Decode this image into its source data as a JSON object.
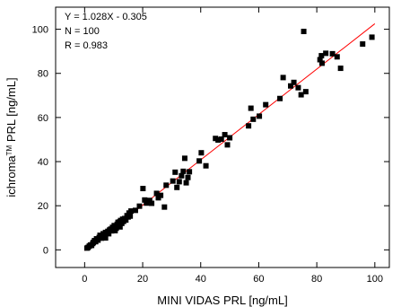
{
  "chart_data": {
    "type": "scatter",
    "xlabel": "MINI VIDAS PRL [ng/mL]",
    "ylabel": {
      "prefix": "ichroma",
      "superscript": "TM",
      "suffix": " PRL [ng/mL]"
    },
    "xlim": [
      -10,
      105
    ],
    "ylim": [
      -8,
      110
    ],
    "xticks": [
      0,
      20,
      40,
      60,
      80,
      100
    ],
    "yticks": [
      0,
      20,
      40,
      60,
      80,
      100
    ],
    "annotations": [
      "Y = 1.028X - 0.305",
      "N = 100",
      "R = 0.983"
    ],
    "fit_line": {
      "slope": 1.028,
      "intercept": -0.305,
      "x_range": [
        0,
        100
      ],
      "color": "#ff0000"
    },
    "marker_color": "#000000",
    "grid": false,
    "points": [
      [
        0.8,
        0.8
      ],
      [
        1.2,
        1.1
      ],
      [
        1.6,
        1.7
      ],
      [
        2.0,
        2.2
      ],
      [
        2.4,
        2.0
      ],
      [
        2.8,
        2.9
      ],
      [
        3.0,
        3.4
      ],
      [
        3.4,
        4.2
      ],
      [
        3.8,
        3.7
      ],
      [
        4.1,
        5.0
      ],
      [
        4.6,
        4.4
      ],
      [
        5.0,
        5.6
      ],
      [
        5.3,
        6.6
      ],
      [
        5.8,
        5.3
      ],
      [
        6.1,
        6.2
      ],
      [
        6.4,
        7.3
      ],
      [
        6.9,
        6.8
      ],
      [
        7.2,
        7.9
      ],
      [
        7.7,
        7.6
      ],
      [
        8.0,
        8.4
      ],
      [
        8.3,
        7.3
      ],
      [
        8.6,
        9.0
      ],
      [
        9.0,
        9.4
      ],
      [
        9.3,
        8.6
      ],
      [
        9.6,
        10.2
      ],
      [
        9.9,
        9.7
      ],
      [
        10.2,
        11.0
      ],
      [
        10.6,
        10.5
      ],
      [
        10.9,
        9.8
      ],
      [
        11.2,
        11.6
      ],
      [
        11.5,
        12.5
      ],
      [
        11.8,
        11.2
      ],
      [
        12.1,
        12.7
      ],
      [
        12.4,
        13.3
      ],
      [
        12.8,
        12.0
      ],
      [
        13.1,
        13.9
      ],
      [
        13.4,
        12.9
      ],
      [
        13.8,
        14.2
      ],
      [
        14.2,
        13.5
      ],
      [
        14.6,
        15.5
      ],
      [
        15.0,
        14.9
      ],
      [
        15.3,
        16.7
      ],
      [
        15.7,
        15.3
      ],
      [
        16.0,
        17.6
      ],
      [
        7.2,
        5.4
      ],
      [
        10.5,
        8.7
      ],
      [
        12.2,
        10.4
      ],
      [
        20.1,
        27.8
      ],
      [
        20.7,
        22.6
      ],
      [
        21.3,
        21.2
      ],
      [
        22.4,
        22.4
      ],
      [
        23.1,
        21.1
      ],
      [
        24.8,
        25.6
      ],
      [
        25.4,
        23.6
      ],
      [
        26.2,
        24.7
      ],
      [
        27.5,
        19.4
      ],
      [
        28.1,
        29.3
      ],
      [
        30.4,
        31.2
      ],
      [
        31.2,
        35.2
      ],
      [
        31.8,
        28.3
      ],
      [
        32.6,
        30.9
      ],
      [
        33.4,
        33.6
      ],
      [
        34.0,
        35.6
      ],
      [
        34.5,
        41.5
      ],
      [
        35.0,
        30.4
      ],
      [
        35.6,
        32.8
      ],
      [
        36.1,
        35.4
      ],
      [
        40.2,
        44.0
      ],
      [
        41.8,
        38.1
      ],
      [
        45.1,
        50.5
      ],
      [
        46.0,
        49.8
      ],
      [
        47.1,
        50.2
      ],
      [
        48.3,
        52.2
      ],
      [
        49.2,
        47.6
      ],
      [
        50.0,
        50.8
      ],
      [
        56.5,
        56.2
      ],
      [
        57.3,
        64.2
      ],
      [
        60.2,
        60.6
      ],
      [
        62.4,
        65.8
      ],
      [
        68.4,
        78.1
      ],
      [
        71.0,
        74.3
      ],
      [
        72.1,
        75.9
      ],
      [
        73.6,
        73.5
      ],
      [
        74.6,
        70.3
      ],
      [
        75.5,
        99.0
      ],
      [
        76.2,
        71.7
      ],
      [
        81.1,
        86.2
      ],
      [
        81.6,
        88.0
      ],
      [
        81.8,
        84.6
      ],
      [
        83.1,
        89.1
      ],
      [
        85.4,
        88.9
      ],
      [
        88.2,
        82.3
      ],
      [
        95.8,
        93.3
      ],
      [
        99.0,
        96.4
      ],
      [
        18.9,
        19.8
      ],
      [
        17.5,
        17.9
      ],
      [
        39.5,
        40.3
      ],
      [
        58.1,
        59.2
      ],
      [
        67.3,
        68.6
      ],
      [
        87.0,
        87.5
      ]
    ]
  }
}
